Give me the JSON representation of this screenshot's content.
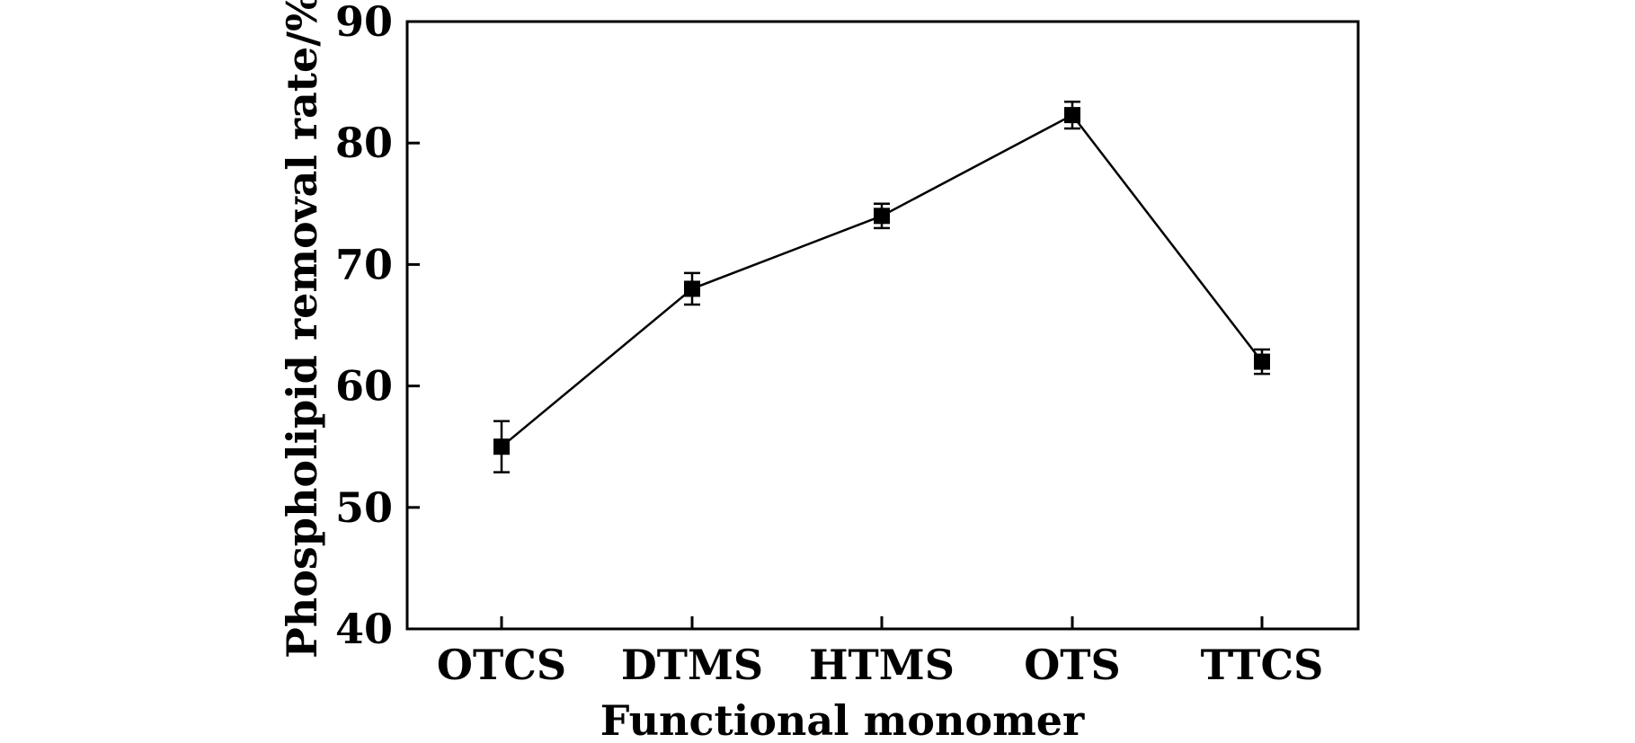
{
  "chart_data": {
    "type": "line",
    "categories": [
      "OTCS",
      "DTMS",
      "HTMS",
      "OTS",
      "TTCS"
    ],
    "series": [
      {
        "values": [
          55,
          68,
          74,
          82.3,
          62
        ],
        "errors": [
          2.1,
          1.3,
          1.0,
          1.1,
          1.0
        ]
      }
    ],
    "xlabel": "Functional monomer",
    "ylabel": "Phospholipid removal rate/%",
    "ylim": [
      40,
      90
    ],
    "yticks": [
      40,
      50,
      60,
      70,
      80,
      90
    ],
    "grid": false,
    "marker": "square",
    "line_color": "#000000"
  }
}
